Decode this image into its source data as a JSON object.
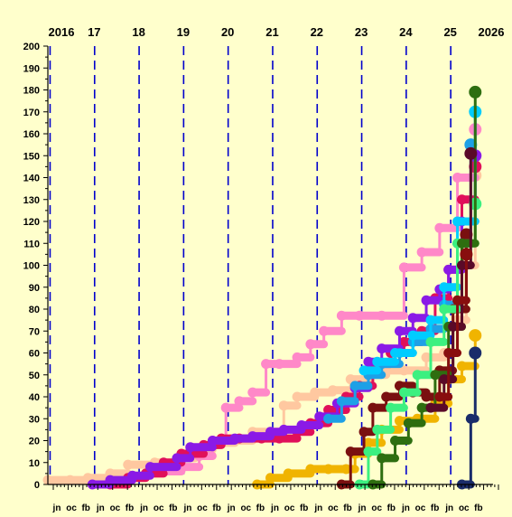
{
  "chart_data": {
    "type": "scatter",
    "title": "",
    "xlabel": "",
    "ylabel": "",
    "ylim": [
      0,
      200
    ],
    "xlim": [
      2016.0,
      2026.0
    ],
    "y_ticks": [
      0,
      10,
      20,
      30,
      40,
      50,
      60,
      70,
      80,
      90,
      100,
      110,
      120,
      130,
      140,
      150,
      160,
      170,
      180,
      190,
      200
    ],
    "top_labels": [
      {
        "x": 2016.0,
        "label": "2016"
      },
      {
        "x": 2017.0,
        "label": "17"
      },
      {
        "x": 2018.0,
        "label": "18"
      },
      {
        "x": 2019.0,
        "label": "19"
      },
      {
        "x": 2020.0,
        "label": "20"
      },
      {
        "x": 2021.0,
        "label": "21"
      },
      {
        "x": 2022.0,
        "label": "22"
      },
      {
        "x": 2023.0,
        "label": "23"
      },
      {
        "x": 2024.0,
        "label": "24"
      },
      {
        "x": 2025.0,
        "label": "25"
      },
      {
        "x": 2026.0,
        "label": "2026"
      }
    ],
    "bottom_label_pattern": [
      "jn",
      "oc",
      "fb"
    ],
    "bottom_label_repeats": 10,
    "year_dividers": [
      2016.0,
      2017.0,
      2018.0,
      2019.0,
      2020.0,
      2021.0,
      2022.0,
      2023.0,
      2024.0,
      2025.0
    ],
    "series": [
      {
        "color": "#FFC8A0",
        "points": [
          [
            2016.0,
            2
          ],
          [
            2016.5,
            2
          ],
          [
            2016.9,
            3
          ],
          [
            2017.4,
            5
          ],
          [
            2017.8,
            9
          ],
          [
            2018.4,
            10
          ],
          [
            2018.9,
            12
          ],
          [
            2019.3,
            16
          ],
          [
            2019.7,
            19
          ],
          [
            2020.2,
            20
          ],
          [
            2020.6,
            24
          ],
          [
            2021.0,
            24
          ],
          [
            2021.3,
            36
          ],
          [
            2021.6,
            40
          ],
          [
            2022.0,
            42
          ],
          [
            2022.4,
            43
          ],
          [
            2022.8,
            48
          ],
          [
            2023.2,
            50
          ],
          [
            2023.6,
            52
          ],
          [
            2024.0,
            52
          ],
          [
            2024.5,
            58
          ],
          [
            2024.9,
            60
          ],
          [
            2025.2,
            75
          ],
          [
            2025.4,
            100
          ],
          [
            2025.6,
            141
          ]
        ]
      },
      {
        "color": "#FF88C8",
        "points": [
          [
            2018.6,
            6
          ],
          [
            2019.0,
            8
          ],
          [
            2019.4,
            13
          ],
          [
            2019.7,
            20
          ],
          [
            2020.0,
            35
          ],
          [
            2020.3,
            38
          ],
          [
            2020.6,
            42
          ],
          [
            2020.9,
            55
          ],
          [
            2021.2,
            55
          ],
          [
            2021.6,
            58
          ],
          [
            2021.9,
            64
          ],
          [
            2022.2,
            70
          ],
          [
            2022.6,
            77
          ],
          [
            2023.0,
            77
          ],
          [
            2023.5,
            77
          ],
          [
            2024.0,
            99
          ],
          [
            2024.4,
            106
          ],
          [
            2024.8,
            117
          ],
          [
            2025.2,
            140
          ],
          [
            2025.6,
            162
          ]
        ]
      },
      {
        "color": "#E0105A",
        "points": [
          [
            2017.4,
            0
          ],
          [
            2017.8,
            3
          ],
          [
            2018.2,
            5
          ],
          [
            2018.6,
            10
          ],
          [
            2019.0,
            14
          ],
          [
            2019.5,
            18
          ],
          [
            2019.9,
            21
          ],
          [
            2020.3,
            21
          ],
          [
            2020.8,
            21
          ],
          [
            2021.2,
            21
          ],
          [
            2021.6,
            24
          ],
          [
            2021.9,
            28
          ],
          [
            2022.3,
            34
          ],
          [
            2022.7,
            40
          ],
          [
            2023.0,
            45
          ],
          [
            2023.3,
            55
          ],
          [
            2023.7,
            60
          ],
          [
            2024.0,
            65
          ],
          [
            2024.4,
            70
          ],
          [
            2024.7,
            85
          ],
          [
            2025.0,
            98
          ],
          [
            2025.3,
            130
          ],
          [
            2025.6,
            145
          ]
        ]
      },
      {
        "color": "#8A1AE6",
        "points": [
          [
            2017.0,
            0
          ],
          [
            2017.4,
            2
          ],
          [
            2017.9,
            4
          ],
          [
            2018.3,
            8
          ],
          [
            2018.9,
            12
          ],
          [
            2019.2,
            17
          ],
          [
            2019.7,
            20
          ],
          [
            2020.2,
            21
          ],
          [
            2020.6,
            22
          ],
          [
            2021.0,
            24
          ],
          [
            2021.3,
            25
          ],
          [
            2021.7,
            27
          ],
          [
            2022.1,
            31
          ],
          [
            2022.5,
            37
          ],
          [
            2022.9,
            44
          ],
          [
            2023.2,
            56
          ],
          [
            2023.5,
            62
          ],
          [
            2023.9,
            70
          ],
          [
            2024.2,
            76
          ],
          [
            2024.5,
            84
          ],
          [
            2024.8,
            89
          ],
          [
            2025.0,
            98
          ],
          [
            2025.3,
            120
          ],
          [
            2025.6,
            150
          ]
        ]
      },
      {
        "color": "#1EA0E6",
        "points": [
          [
            2022.3,
            30
          ],
          [
            2022.6,
            38
          ],
          [
            2022.9,
            45
          ],
          [
            2023.2,
            50
          ],
          [
            2023.5,
            55
          ],
          [
            2023.9,
            60
          ],
          [
            2024.2,
            65
          ],
          [
            2024.6,
            71
          ],
          [
            2024.9,
            82
          ],
          [
            2025.2,
            110
          ],
          [
            2025.5,
            155
          ]
        ]
      },
      {
        "color": "#00CCFF",
        "points": [
          [
            2023.1,
            52
          ],
          [
            2023.4,
            56
          ],
          [
            2023.8,
            60
          ],
          [
            2024.2,
            68
          ],
          [
            2024.6,
            75
          ],
          [
            2024.9,
            90
          ],
          [
            2025.2,
            120
          ],
          [
            2025.6,
            170
          ]
        ]
      },
      {
        "color": "#F0B400",
        "points": [
          [
            2020.7,
            0
          ],
          [
            2021.0,
            3
          ],
          [
            2021.4,
            5
          ],
          [
            2021.9,
            7
          ],
          [
            2022.3,
            7
          ],
          [
            2022.7,
            7
          ],
          [
            2022.9,
            14
          ],
          [
            2023.2,
            19
          ],
          [
            2023.5,
            25
          ],
          [
            2023.9,
            29
          ],
          [
            2024.3,
            30
          ],
          [
            2024.7,
            37
          ],
          [
            2025.0,
            48
          ],
          [
            2025.3,
            54
          ],
          [
            2025.6,
            68
          ]
        ]
      },
      {
        "color": "#7A1010",
        "points": [
          [
            2022.6,
            0
          ],
          [
            2022.8,
            15
          ],
          [
            2023.1,
            24
          ],
          [
            2023.3,
            35
          ],
          [
            2023.6,
            40
          ],
          [
            2023.9,
            45
          ],
          [
            2024.2,
            42
          ],
          [
            2024.5,
            40
          ],
          [
            2024.8,
            52
          ],
          [
            2025.1,
            80
          ],
          [
            2025.4,
            114
          ]
        ]
      },
      {
        "color": "#3CF080",
        "points": [
          [
            2023.0,
            0
          ],
          [
            2023.2,
            15
          ],
          [
            2023.4,
            25
          ],
          [
            2023.7,
            35
          ],
          [
            2024.0,
            42
          ],
          [
            2024.3,
            50
          ],
          [
            2024.6,
            65
          ],
          [
            2024.9,
            80
          ],
          [
            2025.2,
            110
          ],
          [
            2025.6,
            128
          ]
        ]
      },
      {
        "color": "#2E6E10",
        "points": [
          [
            2023.3,
            0
          ],
          [
            2023.5,
            12
          ],
          [
            2023.8,
            20
          ],
          [
            2024.1,
            28
          ],
          [
            2024.4,
            35
          ],
          [
            2024.7,
            50
          ],
          [
            2025.0,
            72
          ],
          [
            2025.3,
            110
          ],
          [
            2025.6,
            179
          ]
        ]
      },
      {
        "color": "#1A2C6A",
        "points": [
          [
            2025.3,
            0
          ],
          [
            2025.5,
            30
          ],
          [
            2025.6,
            60
          ]
        ]
      },
      {
        "color": "#5A0A28",
        "points": [
          [
            2024.6,
            35
          ],
          [
            2024.9,
            48
          ],
          [
            2025.1,
            72
          ],
          [
            2025.3,
            100
          ],
          [
            2025.5,
            151
          ]
        ]
      },
      {
        "color": "#880E0E",
        "points": [
          [
            2024.8,
            40
          ],
          [
            2025.0,
            60
          ],
          [
            2025.2,
            84
          ],
          [
            2025.4,
            105
          ]
        ]
      }
    ]
  }
}
